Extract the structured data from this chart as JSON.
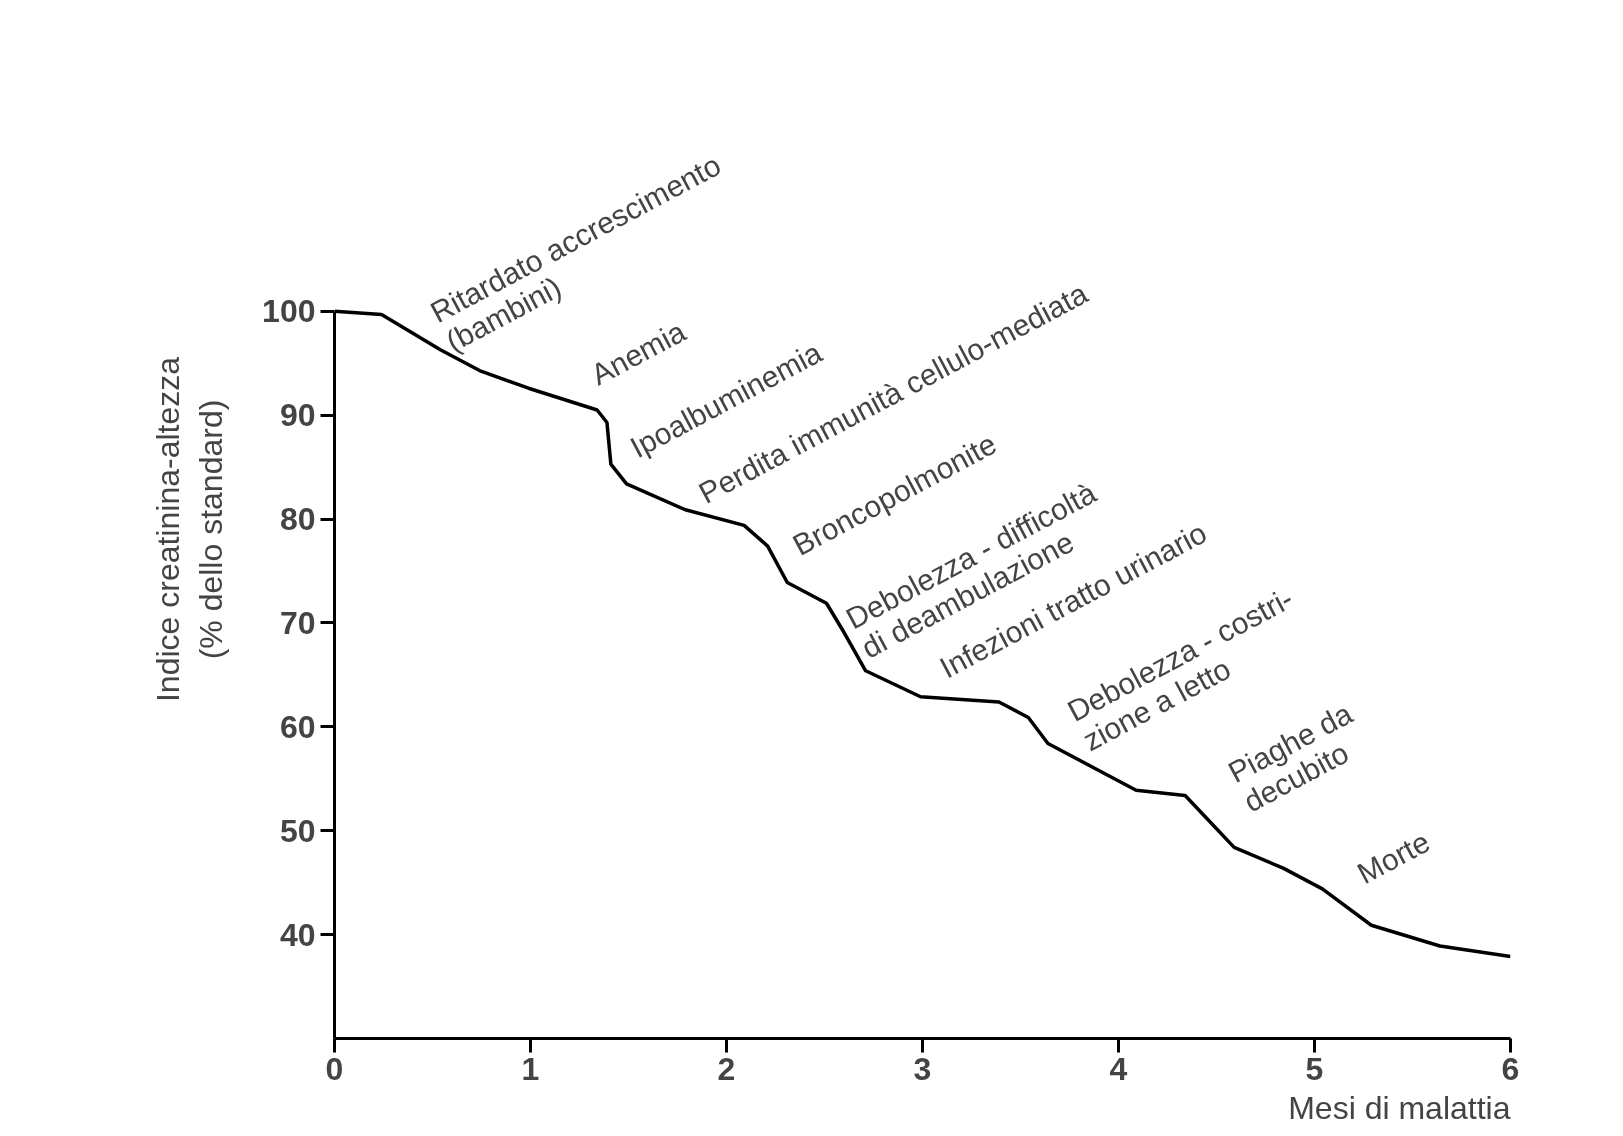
{
  "chart_data": {
    "type": "line",
    "xlabel": "Mesi di malattia",
    "ylabel": "Indice creatinina-altezza\n(% dello standard)",
    "x": [
      0,
      0.24,
      0.54,
      0.74,
      0.99,
      1.34,
      1.39,
      1.41,
      1.49,
      1.79,
      2.09,
      2.21,
      2.31,
      2.51,
      2.59,
      2.71,
      2.99,
      3.39,
      3.54,
      3.64,
      3.89,
      4.09,
      4.34,
      4.44,
      4.59,
      4.84,
      5.04,
      5.29,
      5.64,
      6
    ],
    "series": [
      {
        "color": "#000000",
        "values": [
          100,
          99.7,
          96.3,
          94.3,
          92.6,
          90.5,
          89.3,
          85.3,
          83.4,
          80.9,
          79.4,
          77.4,
          73.9,
          71.9,
          69.4,
          65.4,
          62.9,
          62.4,
          60.9,
          58.4,
          55.9,
          53.9,
          53.4,
          51.4,
          48.4,
          46.4,
          44.4,
          40.9,
          38.9,
          37.9
        ]
      }
    ],
    "xlim": [
      0,
      6
    ],
    "xticks": [
      0,
      1,
      2,
      3,
      4,
      5,
      6
    ],
    "ylim": [
      30,
      100
    ],
    "yticks": [
      40,
      50,
      60,
      70,
      80,
      90,
      100
    ],
    "grid": false,
    "marker": "none",
    "line_style": "solid",
    "annotations": [
      "Ritardato accrescimento\n(bambini)",
      "Anemia",
      "Ipoalbuminemia",
      "Perdita immunità cellulo-mediata",
      "Broncopolmonite",
      "Debolezza - difficoltà\ndi deambulazione",
      "Infezioni tratto urinario",
      "Debolezza - costri-\nzione a letto",
      "Piaghe da\ndecubito",
      "Morte"
    ]
  }
}
